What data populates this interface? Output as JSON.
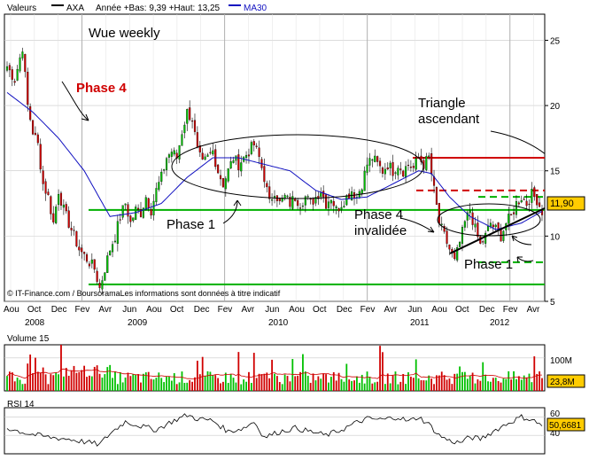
{
  "header": {
    "series_label": "Valeurs",
    "symbol": "AXA",
    "range_text": "Année +Bas: 9,39 +Haut: 13,25",
    "ma_label": "MA30"
  },
  "watermark": "© IT-Finance.com / BoursoramaLes informations sont données à titre indicatif",
  "colors": {
    "up": "#00c000",
    "down": "#d00000",
    "ma": "#1010c0",
    "support": "#00b000",
    "resistance": "#d00000",
    "grid": "#c8c8c8",
    "price_tag_bg": "#ffcc00"
  },
  "annotations": {
    "title": "Wue weekly",
    "phase4": "Phase 4",
    "phase1_left": "Phase 1",
    "phase4_inv_1": "Phase 4",
    "phase4_inv_2": "invalidée",
    "triangle_1": "Triangle",
    "triangle_2": "ascendant",
    "phase1_right": "Phase 1"
  },
  "chart_data": [
    {
      "type": "line",
      "title": "",
      "ylim": [
        5,
        27
      ],
      "y_ticks": [
        "5",
        "10",
        "15",
        "20",
        "25"
      ],
      "x_months": [
        "Aou",
        "Oct",
        "Dec",
        "Fev",
        "Avr",
        "Jun",
        "Aou",
        "Oct",
        "Dec",
        "Fev",
        "Avr",
        "Jun",
        "Aou",
        "Oct",
        "Dec",
        "Fev",
        "Avr",
        "Jun",
        "Aou",
        "Oct",
        "Dec",
        "Fev",
        "Avr"
      ],
      "x_years": [
        "2008",
        "2009",
        "2010",
        "2011",
        "2012"
      ],
      "last_price": "11,90",
      "price_anchors": [
        [
          0,
          23
        ],
        [
          3,
          22
        ],
        [
          6,
          24.5
        ],
        [
          8,
          20
        ],
        [
          10,
          18
        ],
        [
          12,
          17
        ],
        [
          14,
          14
        ],
        [
          16,
          13
        ],
        [
          18,
          11
        ],
        [
          20,
          13.5
        ],
        [
          22,
          12
        ],
        [
          24,
          11
        ],
        [
          26,
          10
        ],
        [
          28,
          9
        ],
        [
          30,
          8.5
        ],
        [
          32,
          8
        ],
        [
          34,
          7.5
        ],
        [
          36,
          6
        ],
        [
          38,
          7.5
        ],
        [
          40,
          9
        ],
        [
          42,
          10
        ],
        [
          44,
          11.5
        ],
        [
          46,
          12.5
        ],
        [
          48,
          11
        ],
        [
          50,
          12
        ],
        [
          52,
          11.8
        ],
        [
          54,
          13
        ],
        [
          56,
          12
        ],
        [
          58,
          13.5
        ],
        [
          60,
          14.5
        ],
        [
          62,
          16
        ],
        [
          64,
          16.5
        ],
        [
          66,
          16
        ],
        [
          68,
          18
        ],
        [
          70,
          19.5
        ],
        [
          72,
          19
        ],
        [
          74,
          16.5
        ],
        [
          76,
          15.5
        ],
        [
          78,
          16
        ],
        [
          80,
          16.5
        ],
        [
          82,
          15
        ],
        [
          84,
          14
        ],
        [
          86,
          15
        ],
        [
          88,
          16
        ],
        [
          90,
          15.5
        ],
        [
          92,
          16
        ],
        [
          94,
          16.5
        ],
        [
          96,
          17
        ],
        [
          98,
          16
        ],
        [
          100,
          14.5
        ],
        [
          102,
          12.5
        ],
        [
          104,
          13.5
        ],
        [
          106,
          12.5
        ],
        [
          108,
          13
        ],
        [
          110,
          12.5
        ],
        [
          112,
          13
        ],
        [
          114,
          12.5
        ],
        [
          116,
          13
        ],
        [
          118,
          12.5
        ],
        [
          120,
          13
        ],
        [
          122,
          13.5
        ],
        [
          124,
          12.5
        ],
        [
          126,
          13
        ],
        [
          128,
          12
        ],
        [
          130,
          12.5
        ],
        [
          132,
          13
        ],
        [
          134,
          13.5
        ],
        [
          136,
          13
        ],
        [
          138,
          14
        ],
        [
          140,
          15.5
        ],
        [
          142,
          16
        ],
        [
          144,
          15.5
        ],
        [
          146,
          15
        ],
        [
          148,
          15.5
        ],
        [
          150,
          15
        ],
        [
          152,
          15.5
        ],
        [
          154,
          15
        ],
        [
          156,
          15.5
        ],
        [
          158,
          15.2
        ],
        [
          160,
          16
        ],
        [
          162,
          15.5
        ],
        [
          164,
          16
        ],
        [
          166,
          13.5
        ],
        [
          168,
          11
        ],
        [
          170,
          10
        ],
        [
          172,
          9
        ],
        [
          174,
          8
        ],
        [
          176,
          9.5
        ],
        [
          178,
          11
        ],
        [
          180,
          12
        ],
        [
          182,
          10.5
        ],
        [
          184,
          9.3
        ],
        [
          186,
          10
        ],
        [
          188,
          11
        ],
        [
          190,
          10.5
        ],
        [
          192,
          10
        ],
        [
          194,
          11
        ],
        [
          196,
          11.5
        ],
        [
          198,
          12.5
        ],
        [
          200,
          13
        ],
        [
          202,
          12.5
        ],
        [
          204,
          13.2
        ],
        [
          206,
          12.8
        ],
        [
          208,
          11.9
        ]
      ],
      "ma30_anchors": [
        [
          0,
          21
        ],
        [
          10,
          19.5
        ],
        [
          20,
          17.5
        ],
        [
          30,
          15
        ],
        [
          40,
          11.5
        ],
        [
          50,
          11.8
        ],
        [
          60,
          12.5
        ],
        [
          70,
          14.5
        ],
        [
          80,
          16
        ],
        [
          90,
          16
        ],
        [
          100,
          15.5
        ],
        [
          110,
          15
        ],
        [
          120,
          13.5
        ],
        [
          130,
          12.8
        ],
        [
          140,
          13
        ],
        [
          150,
          14
        ],
        [
          160,
          15
        ],
        [
          165,
          14.8
        ],
        [
          172,
          13
        ],
        [
          180,
          11.5
        ],
        [
          190,
          10.5
        ],
        [
          200,
          11
        ],
        [
          208,
          11.9
        ]
      ],
      "horizontal_levels": {
        "support_main": 12,
        "support_low": 6.3,
        "resistance": 16,
        "resistance_dashed": 13.5,
        "green_dashed_upper": 13,
        "green_dashed_lower": 8
      }
    },
    {
      "type": "bar",
      "title": "Volume 15",
      "ylim": [
        0,
        140
      ],
      "y_ticks": [
        "100M"
      ],
      "last_value": "23,8M"
    },
    {
      "type": "line",
      "title": "RSI 14",
      "ylim": [
        20,
        70
      ],
      "y_ticks": [
        "40",
        "60"
      ],
      "last_value": "50,6681",
      "rsi_anchors": [
        [
          0,
          48
        ],
        [
          8,
          42
        ],
        [
          16,
          38
        ],
        [
          24,
          36
        ],
        [
          32,
          32
        ],
        [
          36,
          30
        ],
        [
          40,
          42
        ],
        [
          46,
          55
        ],
        [
          52,
          50
        ],
        [
          58,
          46
        ],
        [
          64,
          55
        ],
        [
          70,
          62
        ],
        [
          74,
          58
        ],
        [
          80,
          56
        ],
        [
          86,
          44
        ],
        [
          92,
          48
        ],
        [
          96,
          55
        ],
        [
          100,
          38
        ],
        [
          106,
          44
        ],
        [
          112,
          48
        ],
        [
          118,
          44
        ],
        [
          124,
          40
        ],
        [
          130,
          46
        ],
        [
          136,
          54
        ],
        [
          140,
          58
        ],
        [
          146,
          57
        ],
        [
          152,
          60
        ],
        [
          156,
          55
        ],
        [
          160,
          60
        ],
        [
          164,
          52
        ],
        [
          168,
          40
        ],
        [
          172,
          34
        ],
        [
          176,
          32
        ],
        [
          180,
          38
        ],
        [
          184,
          36
        ],
        [
          190,
          46
        ],
        [
          196,
          55
        ],
        [
          200,
          60
        ],
        [
          204,
          57
        ],
        [
          208,
          51
        ]
      ]
    }
  ]
}
